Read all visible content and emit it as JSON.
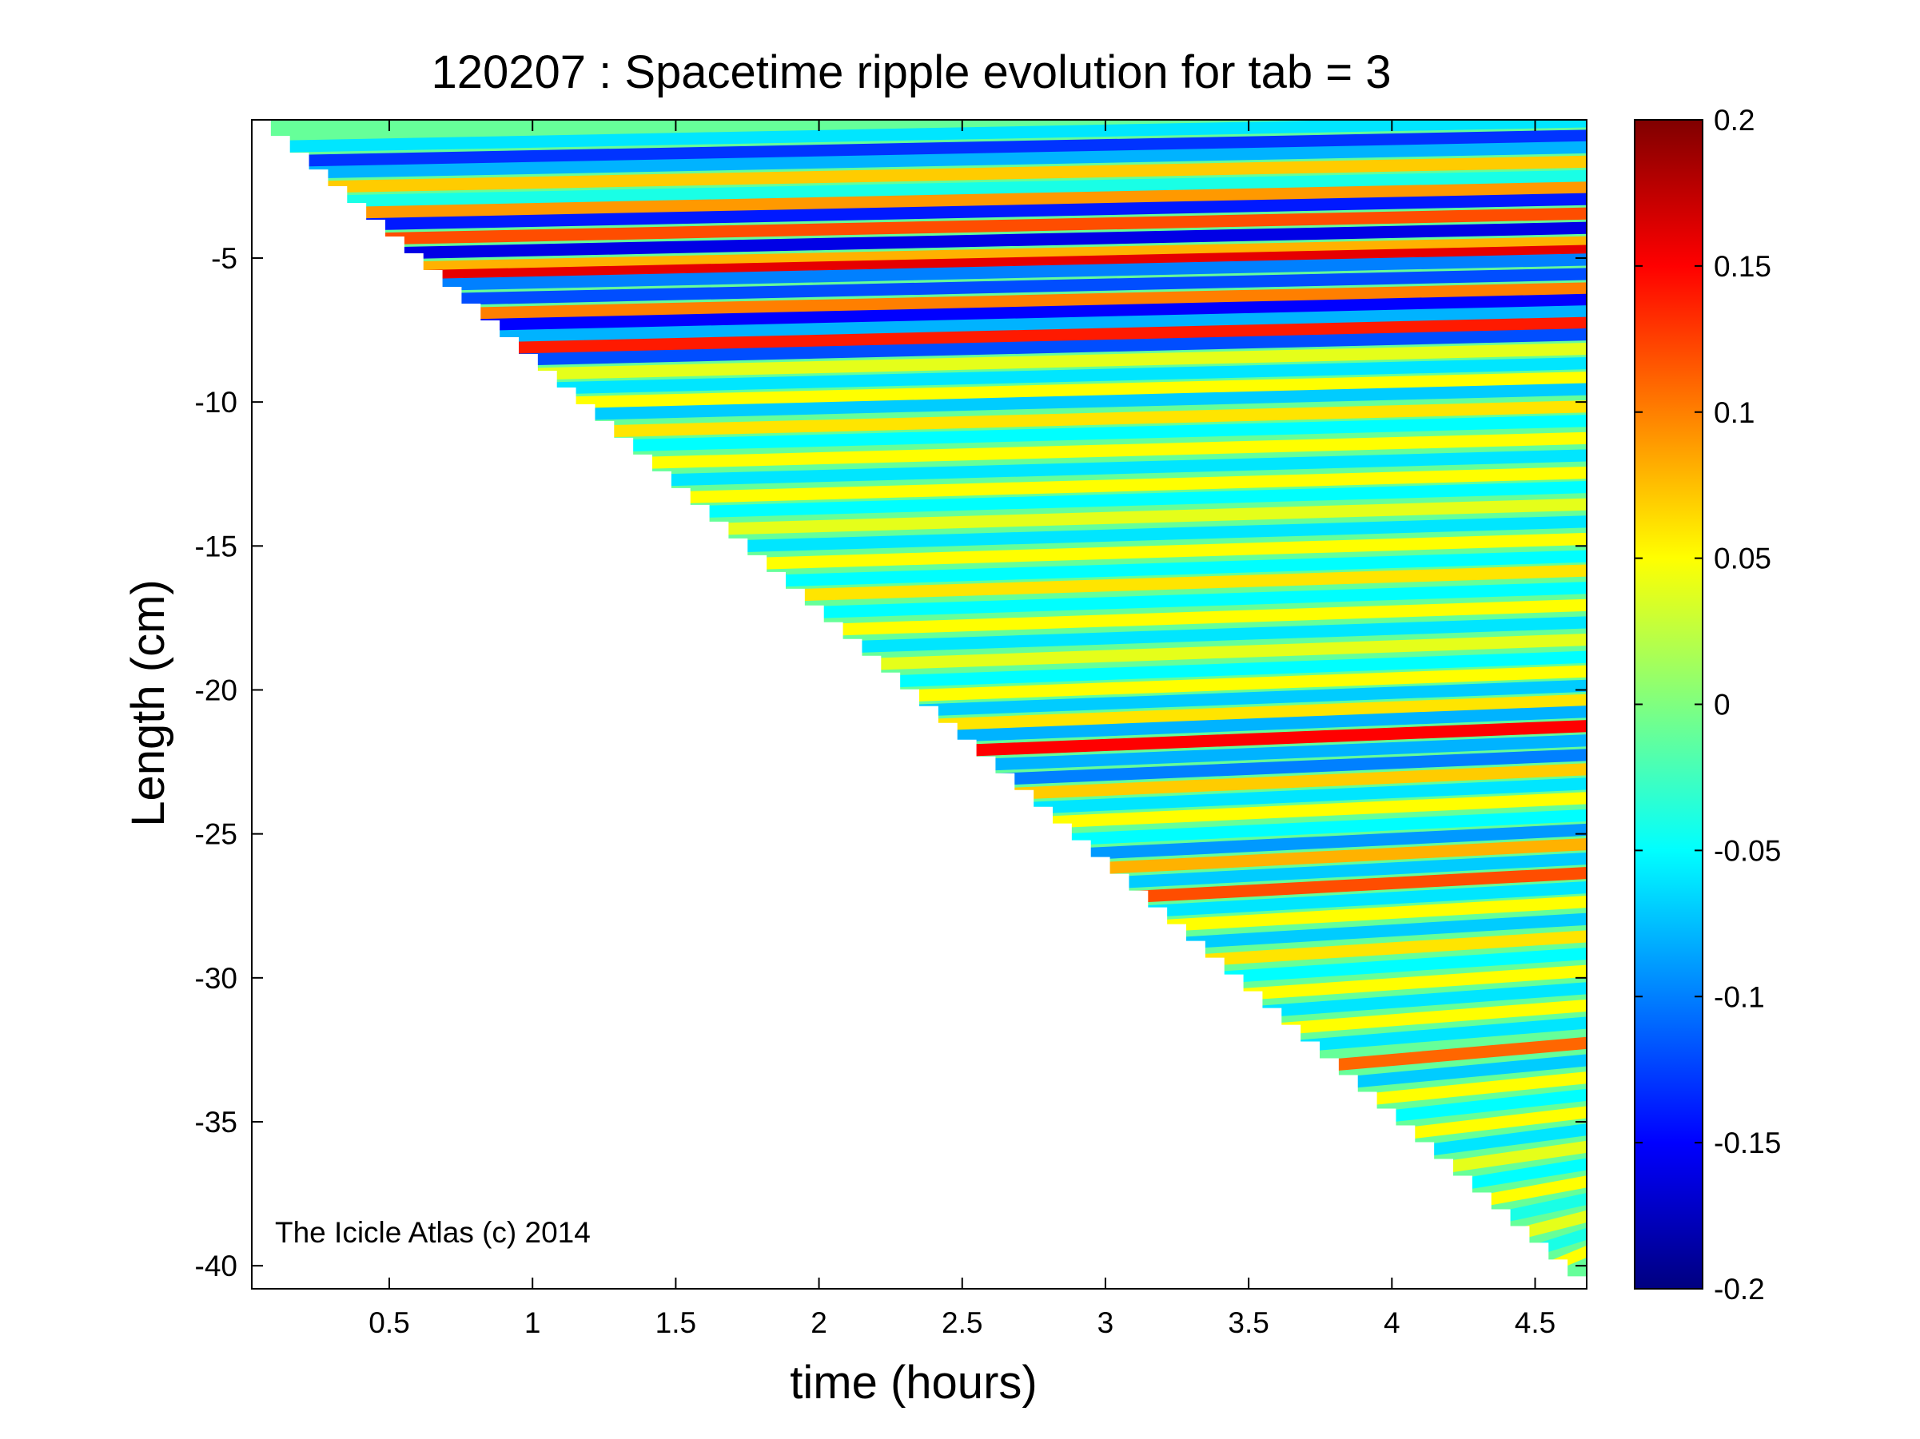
{
  "chart_data": {
    "type": "heatmap",
    "title": "120207 : Spacetime ripple evolution for tab = 3",
    "xlabel": "time (hours)",
    "ylabel": "Length (cm)",
    "xlim": [
      0.02,
      4.68
    ],
    "ylim": [
      -40.8,
      -0.2
    ],
    "xticks": [
      0.5,
      1,
      1.5,
      2,
      2.5,
      3,
      3.5,
      4,
      4.5
    ],
    "xtick_labels": [
      "0.5",
      "1",
      "1.5",
      "2",
      "2.5",
      "3",
      "3.5",
      "4",
      "4.5"
    ],
    "yticks": [
      -5,
      -10,
      -15,
      -20,
      -25,
      -30,
      -35,
      -40
    ],
    "ytick_labels": [
      "-5",
      "-10",
      "-15",
      "-20",
      "-25",
      "-30",
      "-35",
      "-40"
    ],
    "grid": false,
    "colormap": "jet",
    "colorbar": {
      "range": [
        -0.2,
        0.2
      ],
      "ticks": [
        0.2,
        0.15,
        0.1,
        0.05,
        0,
        -0.05,
        -0.1,
        -0.15,
        -0.2
      ],
      "tick_labels": [
        "0.2",
        "0.15",
        "0.1",
        "0.05",
        "0",
        "-0.05",
        "-0.1",
        "-0.15",
        "-0.2"
      ]
    },
    "annotation": "The Icicle Atlas (c) 2014",
    "data_region": "Defined only where length >= -8.75 * time; white (no data) below the diagonal from (0.02, -0.2) to (4.68, -40.8).",
    "bands": [
      {
        "y": -0.7,
        "v": -0.06
      },
      {
        "y": -1.2,
        "v": -0.13
      },
      {
        "y": -1.6,
        "v": -0.08
      },
      {
        "y": -2.1,
        "v": 0.07
      },
      {
        "y": -2.6,
        "v": -0.04
      },
      {
        "y": -3.0,
        "v": 0.09
      },
      {
        "y": -3.4,
        "v": -0.14
      },
      {
        "y": -3.9,
        "v": 0.12
      },
      {
        "y": -4.4,
        "v": -0.16
      },
      {
        "y": -4.9,
        "v": 0.08
      },
      {
        "y": -5.2,
        "v": 0.16
      },
      {
        "y": -5.5,
        "v": -0.1
      },
      {
        "y": -6.0,
        "v": -0.12
      },
      {
        "y": -6.5,
        "v": 0.1
      },
      {
        "y": -6.9,
        "v": -0.15
      },
      {
        "y": -7.3,
        "v": -0.08
      },
      {
        "y": -7.7,
        "v": 0.14
      },
      {
        "y": -8.1,
        "v": -0.12
      },
      {
        "y": -8.6,
        "v": 0.04
      },
      {
        "y": -9.1,
        "v": -0.06
      },
      {
        "y": -9.6,
        "v": 0.05
      },
      {
        "y": -10.0,
        "v": -0.07
      },
      {
        "y": -10.6,
        "v": 0.06
      },
      {
        "y": -11.1,
        "v": -0.05
      },
      {
        "y": -11.7,
        "v": 0.05
      },
      {
        "y": -12.3,
        "v": -0.06
      },
      {
        "y": -12.9,
        "v": 0.05
      },
      {
        "y": -13.4,
        "v": -0.05
      },
      {
        "y": -14.0,
        "v": 0.04
      },
      {
        "y": -14.6,
        "v": -0.06
      },
      {
        "y": -15.2,
        "v": 0.05
      },
      {
        "y": -15.8,
        "v": -0.05
      },
      {
        "y": -16.3,
        "v": 0.06
      },
      {
        "y": -16.9,
        "v": -0.05
      },
      {
        "y": -17.5,
        "v": 0.05
      },
      {
        "y": -18.1,
        "v": -0.06
      },
      {
        "y": -18.7,
        "v": 0.04
      },
      {
        "y": -19.3,
        "v": -0.05
      },
      {
        "y": -19.8,
        "v": 0.05
      },
      {
        "y": -20.3,
        "v": -0.07
      },
      {
        "y": -20.8,
        "v": 0.06
      },
      {
        "y": -21.2,
        "v": -0.08
      },
      {
        "y": -21.7,
        "v": 0.15
      },
      {
        "y": -22.2,
        "v": -0.08
      },
      {
        "y": -22.7,
        "v": -0.1
      },
      {
        "y": -23.2,
        "v": 0.07
      },
      {
        "y": -23.7,
        "v": -0.06
      },
      {
        "y": -24.2,
        "v": 0.05
      },
      {
        "y": -24.8,
        "v": -0.05
      },
      {
        "y": -25.3,
        "v": -0.09
      },
      {
        "y": -25.8,
        "v": 0.08
      },
      {
        "y": -26.3,
        "v": -0.07
      },
      {
        "y": -26.8,
        "v": 0.12
      },
      {
        "y": -27.3,
        "v": -0.06
      },
      {
        "y": -27.8,
        "v": 0.05
      },
      {
        "y": -28.4,
        "v": -0.07
      },
      {
        "y": -29.0,
        "v": 0.06
      },
      {
        "y": -29.6,
        "v": -0.05
      },
      {
        "y": -30.2,
        "v": 0.05
      },
      {
        "y": -30.8,
        "v": -0.06
      },
      {
        "y": -31.4,
        "v": 0.05
      },
      {
        "y": -32.0,
        "v": -0.06
      },
      {
        "y": -32.7,
        "v": 0.11
      },
      {
        "y": -33.3,
        "v": -0.07
      },
      {
        "y": -33.9,
        "v": 0.05
      },
      {
        "y": -34.5,
        "v": -0.05
      },
      {
        "y": -35.1,
        "v": 0.05
      },
      {
        "y": -35.7,
        "v": -0.06
      },
      {
        "y": -36.3,
        "v": 0.04
      },
      {
        "y": -36.9,
        "v": -0.05
      },
      {
        "y": -37.5,
        "v": 0.05
      },
      {
        "y": -38.1,
        "v": -0.04
      },
      {
        "y": -38.7,
        "v": 0.04
      },
      {
        "y": -39.3,
        "v": -0.04
      },
      {
        "y": -39.9,
        "v": 0.05
      }
    ]
  }
}
